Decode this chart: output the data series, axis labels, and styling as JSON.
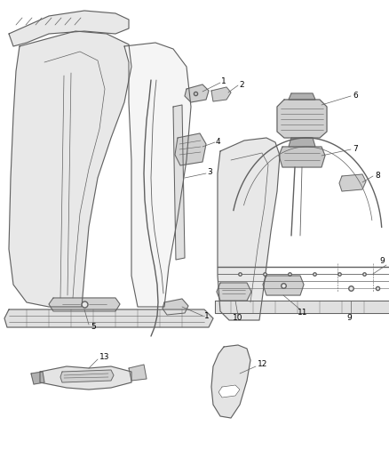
{
  "background_color": "#ffffff",
  "line_color": "#606060",
  "label_color": "#000000",
  "fig_width": 4.38,
  "fig_height": 5.33,
  "dpi": 100,
  "light_gray": "#e8e8e8",
  "mid_gray": "#d0d0d0",
  "dark_gray": "#b0b0b0"
}
